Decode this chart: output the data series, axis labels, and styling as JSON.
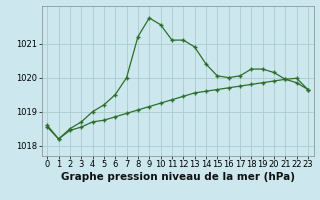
{
  "title": "Graphe pression niveau de la mer (hPa)",
  "x_labels": [
    "0",
    "1",
    "2",
    "3",
    "4",
    "5",
    "6",
    "7",
    "8",
    "9",
    "10",
    "11",
    "12",
    "13",
    "14",
    "15",
    "16",
    "17",
    "18",
    "19",
    "20",
    "21",
    "22",
    "23"
  ],
  "x_values": [
    0,
    1,
    2,
    3,
    4,
    5,
    6,
    7,
    8,
    9,
    10,
    11,
    12,
    13,
    14,
    15,
    16,
    17,
    18,
    19,
    20,
    21,
    22,
    23
  ],
  "line1_y": [
    1018.6,
    1018.2,
    1018.5,
    1018.7,
    1019.0,
    1019.2,
    1019.5,
    1020.0,
    1021.2,
    1021.75,
    1021.55,
    1021.1,
    1021.1,
    1020.9,
    1020.4,
    1020.05,
    1020.0,
    1020.05,
    1020.25,
    1020.25,
    1020.15,
    1019.95,
    1019.85,
    1019.65
  ],
  "line2_y": [
    1018.55,
    1018.2,
    1018.45,
    1018.55,
    1018.7,
    1018.75,
    1018.85,
    1018.95,
    1019.05,
    1019.15,
    1019.25,
    1019.35,
    1019.45,
    1019.55,
    1019.6,
    1019.65,
    1019.7,
    1019.75,
    1019.8,
    1019.85,
    1019.9,
    1019.95,
    1019.98,
    1019.65
  ],
  "bg_color": "#cce8ee",
  "grid_color": "#aacccc",
  "line_color": "#2d6e2d",
  "marker": "+",
  "ylim_min": 1017.7,
  "ylim_max": 1022.1,
  "yticks": [
    1018,
    1019,
    1020,
    1021
  ],
  "title_fontsize": 7.5,
  "tick_fontsize": 6.0,
  "fig_width": 3.2,
  "fig_height": 2.0
}
